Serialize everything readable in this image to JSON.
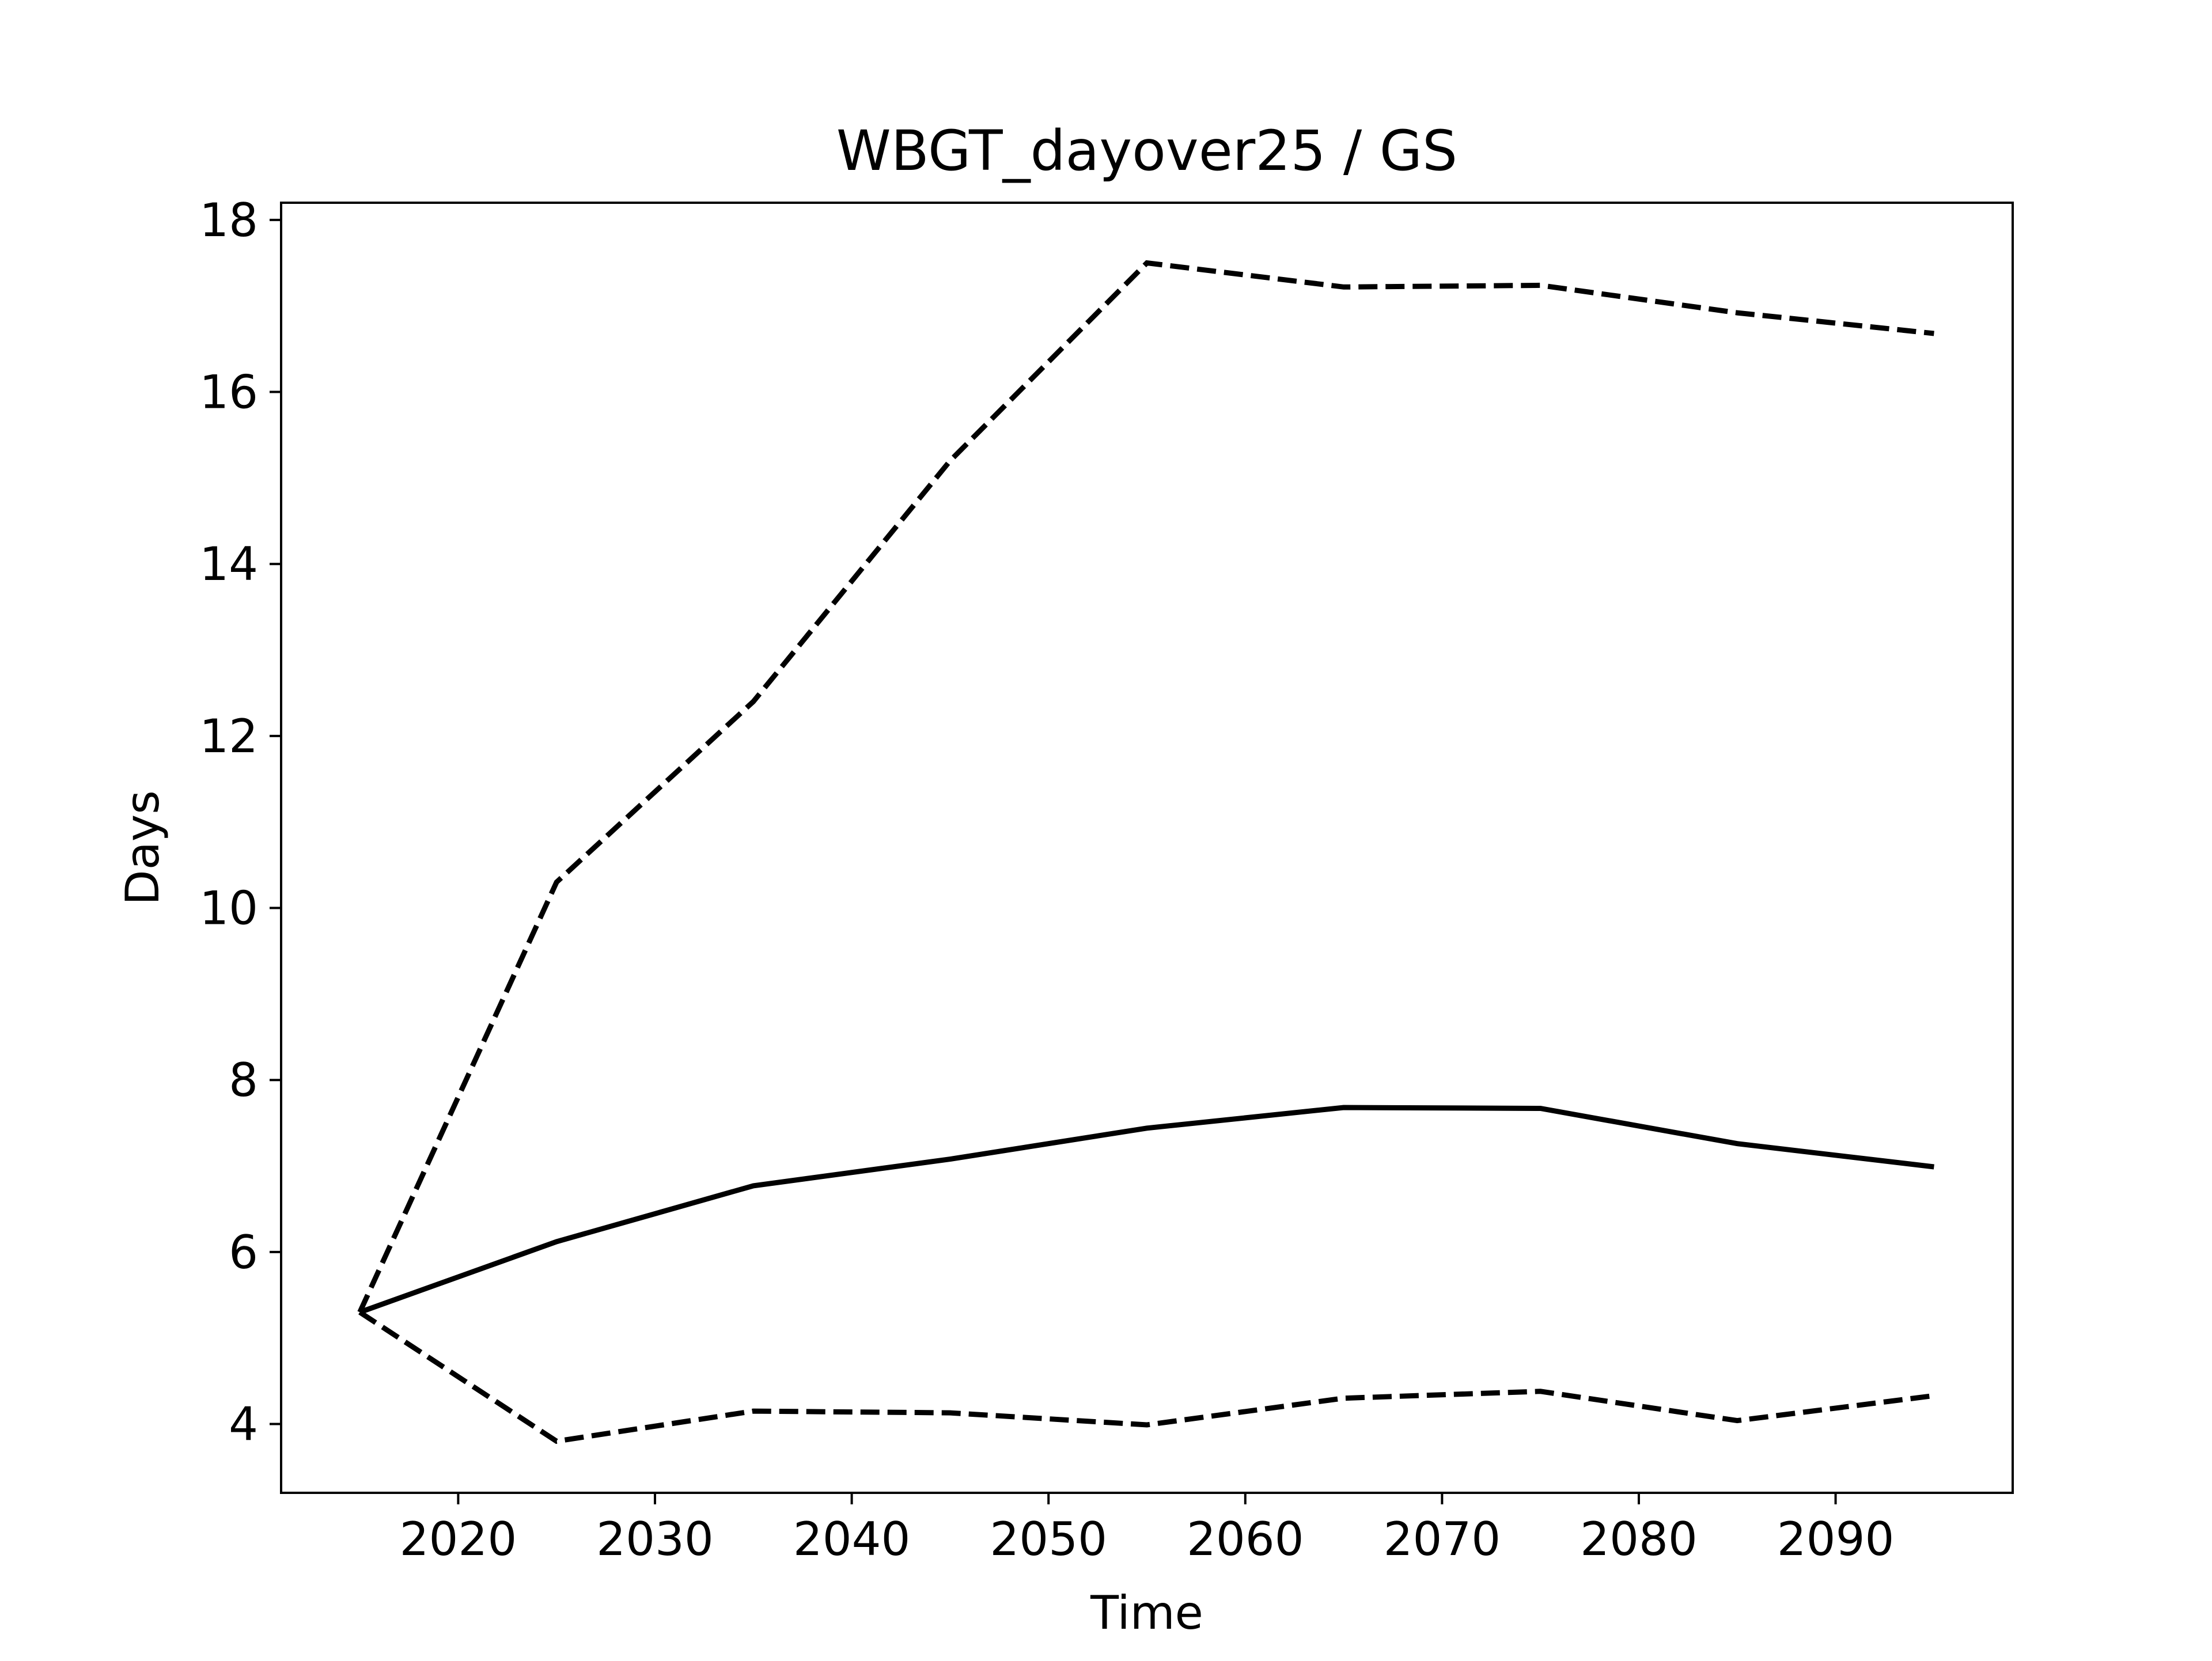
{
  "chart_data": {
    "type": "line",
    "title": "WBGT_dayover25 / GS",
    "xlabel": "Time",
    "ylabel": "Days",
    "xlim": [
      2011,
      2099
    ],
    "ylim": [
      3.2,
      18.2
    ],
    "xticks": [
      2020,
      2030,
      2040,
      2050,
      2060,
      2070,
      2080,
      2090
    ],
    "yticks": [
      4,
      6,
      8,
      10,
      12,
      14,
      16,
      18
    ],
    "grid": false,
    "x": [
      2015,
      2025,
      2035,
      2045,
      2055,
      2065,
      2075,
      2085,
      2095
    ],
    "series": [
      {
        "style": "solid",
        "color": "#000000",
        "values": [
          5.3,
          6.12,
          6.77,
          7.08,
          7.44,
          7.68,
          7.67,
          7.26,
          6.99
        ]
      },
      {
        "style": "dashed",
        "color": "#000000",
        "values": [
          5.3,
          10.3,
          12.4,
          15.2,
          17.5,
          17.22,
          17.24,
          16.92,
          16.68
        ]
      },
      {
        "style": "dashed",
        "color": "#000000",
        "values": [
          5.3,
          3.8,
          4.15,
          4.13,
          3.99,
          4.3,
          4.38,
          4.04,
          4.33
        ]
      }
    ]
  }
}
